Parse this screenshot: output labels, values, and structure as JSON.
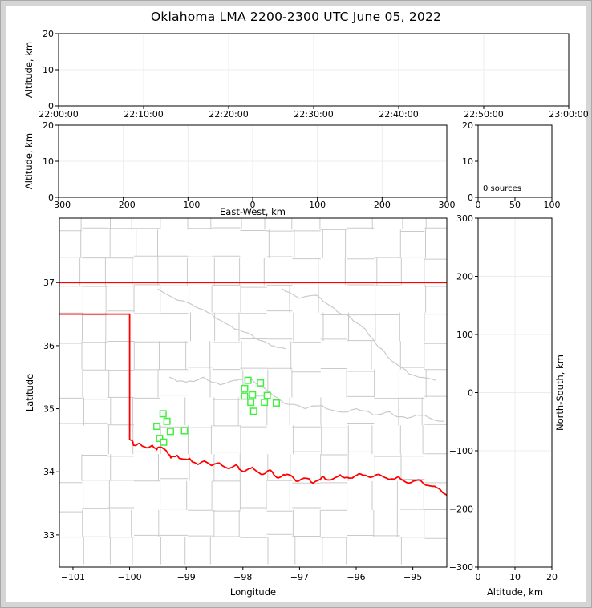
{
  "title": "Oklahoma LMA 2200-2300 UTC June 05, 2022",
  "colors": {
    "axis": "#000000",
    "grid": "#ececec",
    "county_line": "#cacaca",
    "state_border": "#ff0000",
    "river": "#cacaca",
    "station": "#3ff03f",
    "frame": "#d5d5d5",
    "background": "#ffffff"
  },
  "chart_data": [
    {
      "id": "time_altitude",
      "type": "scatter",
      "title": "",
      "xlabel": "",
      "ylabel": "Altitude, km",
      "xlim": [
        0,
        6
      ],
      "ylim": [
        0,
        20
      ],
      "xticks": [
        0,
        1,
        2,
        3,
        4,
        5,
        6
      ],
      "xticklabels": [
        "22:00:00",
        "22:10:00",
        "22:20:00",
        "22:30:00",
        "22:40:00",
        "22:50:00",
        "23:00:00"
      ],
      "yticks": [
        0,
        10,
        20
      ],
      "grid": true,
      "points": []
    },
    {
      "id": "eastwest_altitude",
      "type": "scatter",
      "xlabel": "East-West, km",
      "ylabel": "Altitude, km",
      "xlim": [
        -300,
        300
      ],
      "ylim": [
        0,
        20
      ],
      "xticks": [
        -300,
        -200,
        -100,
        0,
        100,
        200,
        300
      ],
      "yticks": [
        0,
        10,
        20
      ],
      "grid": true,
      "points": []
    },
    {
      "id": "altitude_histogram",
      "type": "line",
      "annotation": "0 sources",
      "xlim": [
        0,
        100
      ],
      "ylim": [
        0,
        20
      ],
      "xticks": [
        0,
        50,
        100
      ],
      "yticks": [
        0,
        10,
        20
      ],
      "grid": false,
      "points": []
    },
    {
      "id": "map",
      "type": "scatter",
      "xlabel": "Longitude",
      "ylabel": "Latitude",
      "xlim": [
        -101.24,
        -94.4
      ],
      "ylim": [
        32.49,
        38.02
      ],
      "xticks": [
        -101,
        -100,
        -99,
        -98,
        -97,
        -96,
        -95
      ],
      "yticks": [
        33,
        34,
        35,
        36,
        37
      ],
      "grid": false,
      "stations": [
        {
          "lon": -99.41,
          "lat": 34.92
        },
        {
          "lon": -99.34,
          "lat": 34.8
        },
        {
          "lon": -99.52,
          "lat": 34.72
        },
        {
          "lon": -99.28,
          "lat": 34.64
        },
        {
          "lon": -99.03,
          "lat": 34.65
        },
        {
          "lon": -99.47,
          "lat": 34.53
        },
        {
          "lon": -99.4,
          "lat": 34.47
        },
        {
          "lon": -97.91,
          "lat": 35.45
        },
        {
          "lon": -97.69,
          "lat": 35.41
        },
        {
          "lon": -97.97,
          "lat": 35.32
        },
        {
          "lon": -97.83,
          "lat": 35.22
        },
        {
          "lon": -97.97,
          "lat": 35.2
        },
        {
          "lon": -97.57,
          "lat": 35.21
        },
        {
          "lon": -97.86,
          "lat": 35.1
        },
        {
          "lon": -97.62,
          "lat": 35.1
        },
        {
          "lon": -97.41,
          "lat": 35.09
        },
        {
          "lon": -97.81,
          "lat": 34.96
        }
      ]
    },
    {
      "id": "northsouth_altitude",
      "type": "scatter",
      "xlabel": "Altitude, km",
      "ylabel": "North-South, km",
      "xlim": [
        0,
        20
      ],
      "ylim": [
        -300,
        300
      ],
      "xticks": [
        0,
        10,
        20
      ],
      "yticks": [
        -300,
        -200,
        -100,
        0,
        100,
        200,
        300
      ],
      "grid": true,
      "points": []
    }
  ],
  "map_features": {
    "state_border": {
      "north_lat": 37.0,
      "panhandle_south_lat": 36.5,
      "panhandle_east_lon": -100.0,
      "west_meridian_bottom_lat": 34.51
    },
    "red_river": [
      [
        -100.0,
        34.51
      ],
      [
        -99.93,
        34.42
      ],
      [
        -99.82,
        34.45
      ],
      [
        -99.7,
        34.38
      ],
      [
        -99.6,
        34.42
      ],
      [
        -99.52,
        34.35
      ],
      [
        -99.42,
        34.38
      ],
      [
        -99.33,
        34.3
      ],
      [
        -99.27,
        34.22
      ],
      [
        -99.16,
        34.26
      ],
      [
        -99.05,
        34.2
      ],
      [
        -98.94,
        34.21
      ],
      [
        -98.82,
        34.13
      ],
      [
        -98.68,
        34.17
      ],
      [
        -98.55,
        34.1
      ],
      [
        -98.42,
        34.14
      ],
      [
        -98.28,
        34.06
      ],
      [
        -98.12,
        34.11
      ],
      [
        -97.98,
        34.0
      ],
      [
        -97.83,
        34.07
      ],
      [
        -97.68,
        33.96
      ],
      [
        -97.52,
        34.03
      ],
      [
        -97.38,
        33.9
      ],
      [
        -97.22,
        33.96
      ],
      [
        -97.06,
        33.85
      ],
      [
        -96.92,
        33.9
      ],
      [
        -96.76,
        33.82
      ],
      [
        -96.6,
        33.92
      ],
      [
        -96.45,
        33.87
      ],
      [
        -96.28,
        33.95
      ],
      [
        -96.12,
        33.9
      ],
      [
        -95.95,
        33.97
      ],
      [
        -95.78,
        33.92
      ],
      [
        -95.6,
        33.96
      ],
      [
        -95.42,
        33.88
      ],
      [
        -95.25,
        33.92
      ],
      [
        -95.08,
        33.82
      ],
      [
        -94.9,
        33.87
      ],
      [
        -94.72,
        33.78
      ],
      [
        -94.55,
        33.74
      ],
      [
        -94.4,
        33.63
      ]
    ],
    "gray_rivers": [
      [
        [
          -99.5,
          36.9
        ],
        [
          -99.15,
          36.72
        ],
        [
          -98.85,
          36.62
        ],
        [
          -98.55,
          36.5
        ],
        [
          -98.3,
          36.35
        ],
        [
          -98.0,
          36.22
        ],
        [
          -97.75,
          36.1
        ],
        [
          -97.5,
          36.0
        ],
        [
          -97.25,
          35.95
        ]
      ],
      [
        [
          -99.3,
          35.5
        ],
        [
          -99.0,
          35.42
        ],
        [
          -98.7,
          35.5
        ],
        [
          -98.4,
          35.38
        ],
        [
          -98.1,
          35.45
        ],
        [
          -97.9,
          35.5
        ],
        [
          -97.7,
          35.35
        ],
        [
          -97.45,
          35.2
        ],
        [
          -97.2,
          35.07
        ],
        [
          -96.9,
          35.0
        ],
        [
          -96.6,
          35.05
        ],
        [
          -96.3,
          34.95
        ],
        [
          -96.0,
          35.0
        ],
        [
          -95.7,
          34.9
        ],
        [
          -95.4,
          34.95
        ],
        [
          -95.1,
          34.85
        ],
        [
          -94.8,
          34.9
        ],
        [
          -94.45,
          34.8
        ]
      ],
      [
        [
          -97.3,
          36.9
        ],
        [
          -97.0,
          36.75
        ],
        [
          -96.7,
          36.8
        ],
        [
          -96.4,
          36.6
        ],
        [
          -96.1,
          36.45
        ],
        [
          -95.9,
          36.3
        ],
        [
          -95.7,
          36.1
        ],
        [
          -95.5,
          35.9
        ],
        [
          -95.2,
          35.65
        ],
        [
          -94.9,
          35.5
        ],
        [
          -94.6,
          35.45
        ]
      ]
    ],
    "counties": {
      "lon_start": -101.32,
      "lon_step": 0.468,
      "cols": 16,
      "lat_start": 32.52,
      "lat_step": 0.445,
      "rows": 13,
      "seed": 20220605,
      "skip_prob": 0.18,
      "jitter": 0.1
    }
  }
}
